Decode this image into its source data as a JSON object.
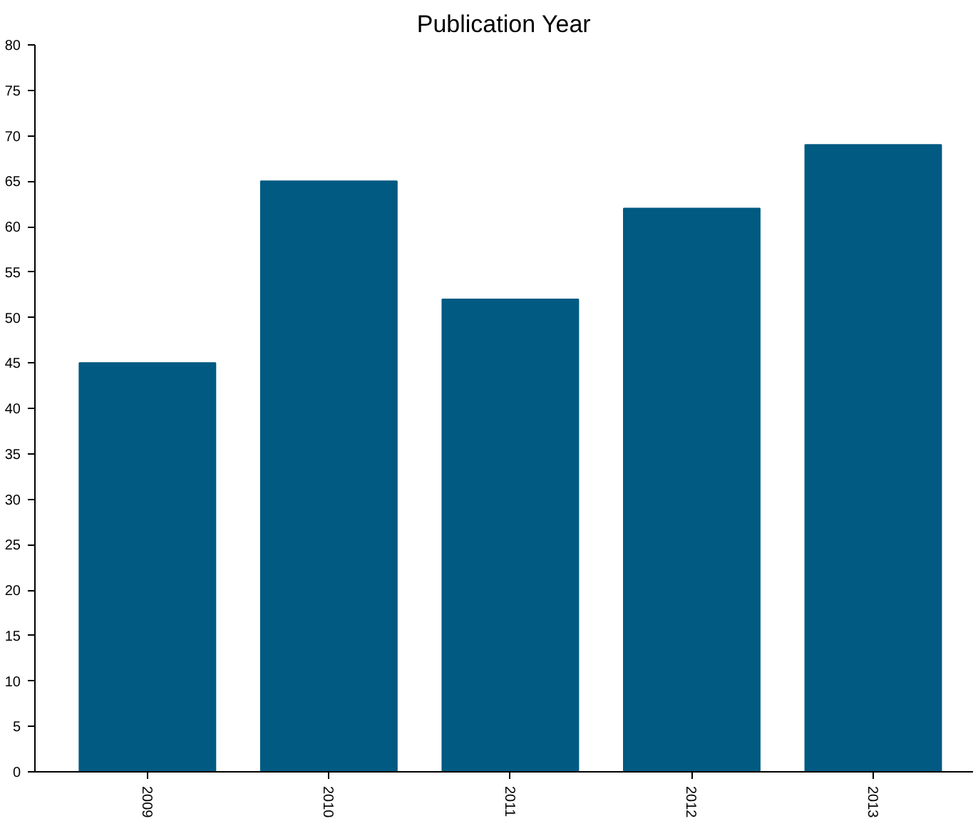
{
  "chart_data": {
    "type": "bar",
    "title": "Publication Year",
    "categories": [
      "2009",
      "2010",
      "2011",
      "2012",
      "2013"
    ],
    "values": [
      45,
      65,
      52,
      62,
      69
    ],
    "color": "#005a82",
    "ylim": [
      0,
      80
    ],
    "yticks": [
      0,
      5,
      10,
      15,
      20,
      25,
      30,
      35,
      40,
      45,
      50,
      55,
      60,
      65,
      70,
      75,
      80
    ],
    "grid": false
  }
}
